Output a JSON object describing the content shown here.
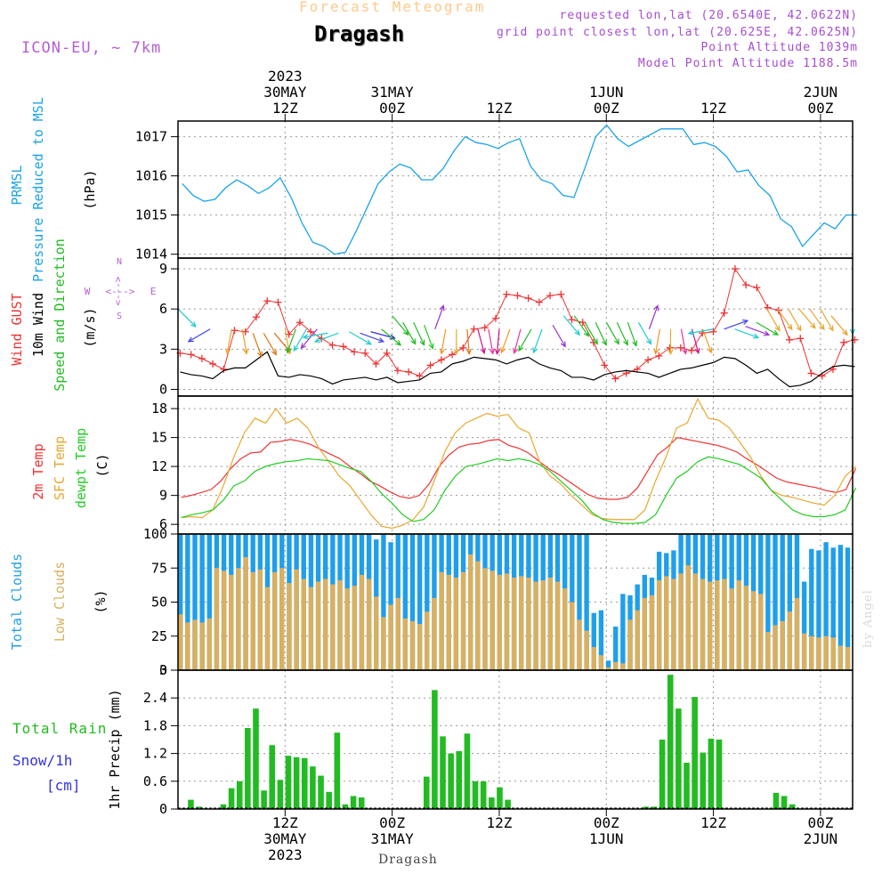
{
  "header": {
    "title_faded": "Forecast Meteogram",
    "title_main": "Dragash",
    "model": "ICON-EU, ~ 7km",
    "info": [
      "requested lon,lat (20.6540E, 42.0622N)",
      "grid point closest lon,lat (20.625E, 42.0625N)",
      "Point Altitude 1039m",
      "Model Point Altitude 1188.5m"
    ],
    "credit": "by Angel",
    "footer": "Dragash"
  },
  "colors": {
    "pressure": "#1aa3e8",
    "gust": "#ee3333",
    "wind": "#000000",
    "direction_label": "#22bb22",
    "temp2m": "#ee3333",
    "sfc_temp": "#e8a830",
    "dewpt": "#22cc22",
    "total_clouds": "#1f9fea",
    "low_clouds": "#d9b060",
    "rain": "#22bb22",
    "snow": "#3333dd",
    "compass": "#b45fd4"
  },
  "chart_data": {
    "type": "meteogram",
    "time_axis": {
      "start_hour": 0,
      "end_hour": 63,
      "top_ticks": [
        {
          "hour": 10,
          "lines": [
            "2023",
            "30MAY",
            "12Z"
          ]
        },
        {
          "hour": 20,
          "lines": [
            "31MAY",
            "00Z"
          ]
        },
        {
          "hour": 30,
          "lines": [
            "12Z"
          ]
        },
        {
          "hour": 40,
          "lines": [
            "1JUN",
            "00Z"
          ]
        },
        {
          "hour": 50,
          "lines": [
            "12Z"
          ]
        },
        {
          "hour": 60,
          "lines": [
            "2JUN",
            "00Z"
          ]
        }
      ],
      "bottom_ticks": [
        {
          "hour": 10,
          "lines": [
            "12Z",
            "30MAY",
            "2023"
          ]
        },
        {
          "hour": 20,
          "lines": [
            "00Z",
            "31MAY"
          ]
        },
        {
          "hour": 30,
          "lines": [
            "12Z"
          ]
        },
        {
          "hour": 40,
          "lines": [
            "00Z",
            "1JUN"
          ]
        },
        {
          "hour": 50,
          "lines": [
            "12Z"
          ]
        },
        {
          "hour": 60,
          "lines": [
            "00Z",
            "2JUN"
          ]
        }
      ]
    },
    "pressure": {
      "labels": [
        "PRMSL",
        "Pressure Reduced to MSL",
        "(hPa)"
      ],
      "ylim": [
        1013.9,
        1017.4
      ],
      "yticks": [
        1014,
        1015,
        1016,
        1017
      ],
      "values": [
        1015.8,
        1015.5,
        1015.35,
        1015.4,
        1015.7,
        1015.9,
        1015.75,
        1015.55,
        1015.7,
        1015.95,
        1015.45,
        1014.8,
        1014.3,
        1014.2,
        1014.0,
        1014.05,
        1014.6,
        1015.2,
        1015.8,
        1016.1,
        1016.3,
        1016.2,
        1015.9,
        1015.9,
        1016.2,
        1016.65,
        1017.0,
        1016.85,
        1016.8,
        1016.7,
        1016.85,
        1016.95,
        1016.25,
        1015.9,
        1015.8,
        1015.5,
        1015.45,
        1016.2,
        1017.0,
        1017.3,
        1016.95,
        1016.75,
        1016.9,
        1017.05,
        1017.2,
        1017.2,
        1017.2,
        1016.8,
        1016.85,
        1016.75,
        1016.5,
        1016.1,
        1016.15,
        1015.75,
        1015.5,
        1014.9,
        1014.7,
        1014.2,
        1014.5,
        1014.8,
        1014.65,
        1015.0,
        1015.0
      ]
    },
    "wind": {
      "labels": [
        "Wind GUST",
        "10m Wind",
        "Speed and Direction",
        "(m/s)"
      ],
      "ylim": [
        -0.5,
        9.8
      ],
      "yticks": [
        0,
        3,
        6,
        9
      ],
      "gust": [
        2.7,
        2.6,
        2.3,
        1.9,
        1.5,
        4.4,
        4.3,
        5.4,
        6.6,
        6.5,
        4.1,
        5.0,
        4.3,
        3.8,
        3.3,
        3.2,
        2.8,
        2.7,
        1.9,
        2.7,
        1.4,
        1.3,
        1.0,
        1.8,
        2.2,
        2.6,
        3.1,
        4.5,
        4.6,
        5.3,
        7.1,
        7.0,
        6.8,
        6.5,
        7.0,
        7.1,
        5.2,
        5.0,
        3.5,
        1.8,
        0.8,
        1.2,
        1.5,
        2.2,
        2.5,
        3.1,
        3.1,
        2.9,
        4.2,
        4.3,
        5.7,
        9.0,
        7.8,
        7.6,
        6.1,
        5.9,
        3.7,
        3.8,
        1.2,
        1.0,
        1.5,
        3.5,
        3.7
      ],
      "speed": [
        1.3,
        1.1,
        1.0,
        0.8,
        1.4,
        1.6,
        1.6,
        2.2,
        2.8,
        1.0,
        0.9,
        1.1,
        1.0,
        0.8,
        0.4,
        0.7,
        0.8,
        0.9,
        0.7,
        0.9,
        0.5,
        0.6,
        0.7,
        1.2,
        1.3,
        1.9,
        2.1,
        2.4,
        2.3,
        2.2,
        1.9,
        2.2,
        2.4,
        1.9,
        1.6,
        1.4,
        0.9,
        0.9,
        0.7,
        1.1,
        1.3,
        1.4,
        1.3,
        1.2,
        0.9,
        1.2,
        1.5,
        1.6,
        1.8,
        2.0,
        2.4,
        2.3,
        1.8,
        1.2,
        1.5,
        0.8,
        0.2,
        0.3,
        0.6,
        1.2,
        1.7,
        1.8,
        1.7
      ],
      "compass": [
        "N",
        "S",
        "W",
        "E",
        "<--->"
      ],
      "direction_arrows": [
        {
          "h": 0,
          "s": 6,
          "dir": 315,
          "c": "#22cccc"
        },
        {
          "h": 3,
          "s": 4.5,
          "dir": 60,
          "c": "#4444ee"
        },
        {
          "h": 5,
          "s": 4.5,
          "dir": 10,
          "c": "#e8a830"
        },
        {
          "h": 6,
          "s": 4.5,
          "dir": 350,
          "c": "#ee9922"
        },
        {
          "h": 7,
          "s": 4.2,
          "dir": 340,
          "c": "#dd7711"
        },
        {
          "h": 8,
          "s": 4.2,
          "dir": 330,
          "c": "#dd7711"
        },
        {
          "h": 9,
          "s": 4.2,
          "dir": 320,
          "c": "#dd6611"
        },
        {
          "h": 10,
          "s": 4.5,
          "dir": 350,
          "c": "#e8a830"
        },
        {
          "h": 11,
          "s": 4.5,
          "dir": 20,
          "c": "#22bb22"
        },
        {
          "h": 12,
          "s": 4.5,
          "dir": 30,
          "c": "#22cccc"
        },
        {
          "h": 13,
          "s": 4.5,
          "dir": 40,
          "c": "#9933cc"
        },
        {
          "h": 14,
          "s": 4.2,
          "dir": 80,
          "c": "#22cccc"
        },
        {
          "h": 15,
          "s": 4.2,
          "dir": 70,
          "c": "#22cccc"
        },
        {
          "h": 16,
          "s": 4.3,
          "dir": 300,
          "c": "#22cccc"
        },
        {
          "h": 17,
          "s": 4.2,
          "dir": 290,
          "c": "#4444ee"
        },
        {
          "h": 18,
          "s": 4.3,
          "dir": 285,
          "c": "#3333cc"
        },
        {
          "h": 19,
          "s": 4.5,
          "dir": 310,
          "c": "#22bb22"
        },
        {
          "h": 20,
          "s": 5.5,
          "dir": 320,
          "c": "#22bb22"
        },
        {
          "h": 21,
          "s": 5.0,
          "dir": 330,
          "c": "#22bb22"
        },
        {
          "h": 22,
          "s": 5.0,
          "dir": 335,
          "c": "#22bb22"
        },
        {
          "h": 23,
          "s": 4.8,
          "dir": 340,
          "c": "#22cc22"
        },
        {
          "h": 24,
          "s": 4.5,
          "dir": 200,
          "c": "#9933cc"
        },
        {
          "h": 25,
          "s": 4.5,
          "dir": 10,
          "c": "#ee9922"
        },
        {
          "h": 26,
          "s": 4.5,
          "dir": 0,
          "c": "#e8a830"
        },
        {
          "h": 27,
          "s": 4.5,
          "dir": 355,
          "c": "#dd7711"
        },
        {
          "h": 28,
          "s": 4.5,
          "dir": 345,
          "c": "#cc1188"
        },
        {
          "h": 29,
          "s": 4.5,
          "dir": 350,
          "c": "#ee3399"
        },
        {
          "h": 30,
          "s": 4.5,
          "dir": 5,
          "c": "#cc1188"
        },
        {
          "h": 31,
          "s": 4.5,
          "dir": 20,
          "c": "#ee9922"
        },
        {
          "h": 32,
          "s": 4.5,
          "dir": 15,
          "c": "#ee3399"
        },
        {
          "h": 33,
          "s": 4.5,
          "dir": 30,
          "c": "#22bb22"
        },
        {
          "h": 34,
          "s": 4.5,
          "dir": 20,
          "c": "#22cccc"
        },
        {
          "h": 35,
          "s": 4.8,
          "dir": 330,
          "c": "#9933cc"
        },
        {
          "h": 36,
          "s": 5.5,
          "dir": 320,
          "c": "#22cccc"
        },
        {
          "h": 37,
          "s": 5.5,
          "dir": 325,
          "c": "#22bb22"
        },
        {
          "h": 38,
          "s": 5.0,
          "dir": 330,
          "c": "#22bb22"
        },
        {
          "h": 39,
          "s": 5.0,
          "dir": 335,
          "c": "#22bb22"
        },
        {
          "h": 40,
          "s": 5.0,
          "dir": 330,
          "c": "#22bb22"
        },
        {
          "h": 41,
          "s": 5.0,
          "dir": 335,
          "c": "#22bb22"
        },
        {
          "h": 42,
          "s": 5.0,
          "dir": 340,
          "c": "#22bb22"
        },
        {
          "h": 43,
          "s": 5.0,
          "dir": 330,
          "c": "#22cccc"
        },
        {
          "h": 44,
          "s": 4.5,
          "dir": 200,
          "c": "#9933cc"
        },
        {
          "h": 45,
          "s": 4.5,
          "dir": 10,
          "c": "#ee9922"
        },
        {
          "h": 46,
          "s": 4.5,
          "dir": 0,
          "c": "#e8a830"
        },
        {
          "h": 47,
          "s": 4.5,
          "dir": 350,
          "c": "#ee3399"
        },
        {
          "h": 48,
          "s": 4.5,
          "dir": 345,
          "c": "#cc1188"
        },
        {
          "h": 49,
          "s": 4.5,
          "dir": 340,
          "c": "#ee9922"
        },
        {
          "h": 50,
          "s": 4.5,
          "dir": 80,
          "c": "#22cccc"
        },
        {
          "h": 51,
          "s": 4.5,
          "dir": 250,
          "c": "#4444ee"
        },
        {
          "h": 52,
          "s": 4.5,
          "dir": 290,
          "c": "#22cccc"
        },
        {
          "h": 53,
          "s": 4.7,
          "dir": 290,
          "c": "#9933cc"
        },
        {
          "h": 54,
          "s": 5.0,
          "dir": 300,
          "c": "#22bb22"
        },
        {
          "h": 55,
          "s": 6.0,
          "dir": 330,
          "c": "#e8a830"
        },
        {
          "h": 56,
          "s": 6.0,
          "dir": 325,
          "c": "#e8a830"
        },
        {
          "h": 57,
          "s": 6.0,
          "dir": 330,
          "c": "#e8a830"
        },
        {
          "h": 58,
          "s": 6.0,
          "dir": 320,
          "c": "#e8a830"
        },
        {
          "h": 59,
          "s": 6.0,
          "dir": 325,
          "c": "#e8a830"
        },
        {
          "h": 60,
          "s": 6.0,
          "dir": 330,
          "c": "#e8a830"
        },
        {
          "h": 61,
          "s": 5.5,
          "dir": 320,
          "c": "#ee9922"
        },
        {
          "h": 63,
          "s": 6.0,
          "dir": 0,
          "c": "#22cccc"
        }
      ]
    },
    "temperature": {
      "labels": [
        "2m Temp",
        "SFC Temp",
        "dewpt Temp",
        "(C)"
      ],
      "ylim": [
        5,
        19.3
      ],
      "yticks": [
        6,
        9,
        12,
        15,
        18
      ],
      "temp2m": [
        8.8,
        9.0,
        9.3,
        9.6,
        10.5,
        11.8,
        12.8,
        13.4,
        13.5,
        14.5,
        14.6,
        14.8,
        14.6,
        14.3,
        13.8,
        13.3,
        12.8,
        12.0,
        11.3,
        10.5,
        10.0,
        9.4,
        8.9,
        8.7,
        9.0,
        10.2,
        12.0,
        13.2,
        14.0,
        14.3,
        14.4,
        14.7,
        14.8,
        14.2,
        13.9,
        13.4,
        12.6,
        11.8,
        11.2,
        10.5,
        9.8,
        9.1,
        8.7,
        8.6,
        8.6,
        8.8,
        9.8,
        11.5,
        13.2,
        14.0,
        15.0,
        14.8,
        14.6,
        14.4,
        14.2,
        13.9,
        13.5,
        12.8,
        12.2,
        11.5,
        10.8,
        10.4,
        10.2,
        10.0,
        9.8,
        9.5,
        9.3,
        9.6,
        11.8
      ],
      "sfc": [
        6.7,
        6.8,
        6.7,
        7.5,
        10.0,
        13.0,
        15.5,
        17.0,
        16.5,
        18.0,
        16.5,
        17.0,
        16.0,
        14.0,
        12.5,
        11.0,
        10.0,
        8.5,
        7.0,
        5.8,
        5.6,
        5.9,
        6.5,
        7.8,
        10.5,
        13.5,
        15.5,
        16.5,
        17.0,
        17.5,
        17.2,
        17.4,
        16.0,
        15.5,
        12.5,
        11.0,
        10.2,
        9.0,
        8.0,
        7.0,
        6.6,
        6.5,
        6.5,
        6.5,
        7.5,
        10.5,
        13.0,
        16.0,
        16.5,
        19.0,
        17.0,
        16.8,
        16.0,
        14.5,
        13.0,
        11.0,
        9.5,
        9.0,
        8.8,
        8.5,
        8.2,
        8.0,
        9.0,
        11.0,
        12.0
      ],
      "dewpt": [
        6.7,
        7.0,
        7.2,
        7.5,
        8.5,
        10.0,
        10.5,
        11.5,
        12.0,
        12.3,
        12.5,
        12.6,
        12.8,
        12.7,
        12.6,
        12.2,
        11.8,
        11.5,
        10.5,
        9.2,
        8.2,
        7.0,
        6.3,
        6.5,
        7.5,
        9.5,
        11.0,
        12.0,
        12.2,
        12.5,
        12.8,
        12.6,
        12.8,
        12.6,
        12.2,
        11.5,
        10.5,
        9.5,
        8.5,
        7.2,
        6.5,
        6.2,
        6.1,
        6.1,
        6.2,
        7.0,
        9.0,
        10.8,
        11.5,
        12.5,
        13.0,
        12.8,
        12.5,
        12.2,
        11.5,
        10.8,
        9.5,
        8.5,
        7.5,
        7.0,
        6.8,
        6.8,
        7.0,
        7.5,
        9.8
      ],
      "ticks_extra": []
    },
    "clouds": {
      "labels": [
        "Total Clouds",
        "Low Clouds",
        "(%)"
      ],
      "ylim": [
        0,
        100
      ],
      "yticks": [
        0,
        25,
        50,
        75,
        100
      ],
      "total": [
        100,
        100,
        100,
        100,
        100,
        100,
        100,
        100,
        100,
        100,
        100,
        100,
        100,
        100,
        100,
        100,
        100,
        100,
        100,
        100,
        100,
        100,
        100,
        100,
        100,
        100,
        100,
        96,
        100,
        94,
        100,
        100,
        100,
        100,
        100,
        100,
        100,
        100,
        100,
        100,
        100,
        100,
        100,
        100,
        100,
        100,
        100,
        100,
        100,
        100,
        100,
        100,
        100,
        100,
        100,
        100,
        100,
        42,
        44,
        7,
        32,
        56,
        55,
        63,
        70,
        68,
        87,
        86,
        88,
        100,
        100,
        100,
        100,
        100,
        100,
        100,
        100,
        100,
        100,
        100,
        100,
        100,
        100,
        100,
        100,
        100,
        65,
        89,
        88,
        94,
        90,
        92,
        90
      ],
      "low": [
        41,
        35,
        37,
        35,
        38,
        75,
        73,
        70,
        75,
        83,
        72,
        74,
        61,
        72,
        75,
        64,
        74,
        67,
        61,
        65,
        67,
        63,
        66,
        60,
        62,
        70,
        67,
        54,
        39,
        48,
        53,
        38,
        36,
        34,
        43,
        53,
        72,
        70,
        68,
        72,
        85,
        80,
        75,
        73,
        70,
        71,
        68,
        69,
        68,
        65,
        66,
        68,
        65,
        60,
        50,
        37,
        29,
        17,
        11,
        2,
        6,
        5,
        37,
        44,
        53,
        55,
        66,
        69,
        67,
        71,
        77,
        71,
        67,
        65,
        66,
        67,
        60,
        66,
        62,
        58,
        56,
        28,
        33,
        36,
        43,
        53,
        27,
        25,
        24,
        25,
        24,
        18,
        17
      ],
      "hours_per_bar": 0.6774
    },
    "precip": {
      "labels": [
        "Total Rain",
        "Snow/1h",
        "[cm]",
        "1hr Precip (mm)"
      ],
      "ylim": [
        0,
        3.0
      ],
      "yticks": [
        0,
        0.6,
        1.2,
        1.8,
        2.4,
        3
      ],
      "rain": [
        0,
        0.2,
        0.05,
        0,
        0,
        0.1,
        0.45,
        0.6,
        1.75,
        2.17,
        0.4,
        1.38,
        0.63,
        1.15,
        1.12,
        1.1,
        0.92,
        0.72,
        0.37,
        1.65,
        0.1,
        0.28,
        0.25,
        0,
        0,
        0,
        0,
        0,
        0,
        0,
        0.7,
        2.57,
        1.57,
        1.2,
        1.25,
        1.63,
        0.6,
        0.6,
        0.25,
        0.47,
        0.2,
        0,
        0,
        0,
        0,
        0,
        0,
        0,
        0,
        0,
        0,
        0,
        0,
        0,
        0,
        0,
        0,
        0.05,
        0.05,
        1.5,
        2.9,
        2.17,
        1.0,
        2.42,
        1.22,
        1.52,
        1.5,
        0,
        0,
        0,
        0,
        0,
        0,
        0.35,
        0.28,
        0.1,
        0,
        0,
        0,
        0,
        0,
        0,
        0
      ],
      "hours_per_bar": 0.75
    }
  }
}
